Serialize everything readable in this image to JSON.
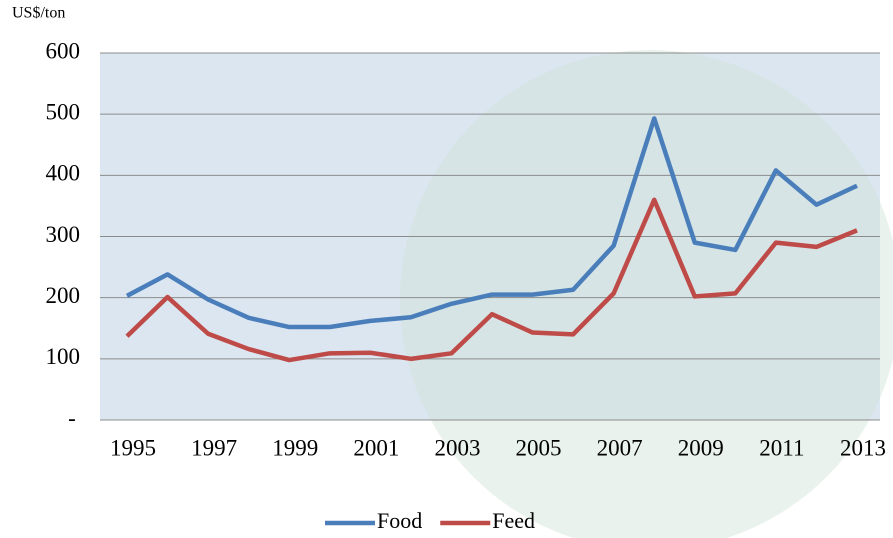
{
  "chart_data": {
    "type": "line",
    "y_unit_label": "US$/ton",
    "categories": [
      "1995",
      null,
      "1997",
      null,
      "1999",
      null,
      "2001",
      null,
      "2003",
      null,
      "2005",
      null,
      "2007",
      null,
      "2009",
      null,
      "2011",
      null,
      "2013"
    ],
    "series": [
      {
        "name": "Food",
        "color": "#4a7ebb",
        "values": [
          203,
          238,
          197,
          167,
          152,
          152,
          162,
          168,
          190,
          205,
          205,
          213,
          285,
          493,
          290,
          278,
          408,
          352,
          383
        ]
      },
      {
        "name": "Feed",
        "color": "#be4b48",
        "values": [
          137,
          201,
          141,
          116,
          98,
          109,
          110,
          100,
          109,
          173,
          143,
          140,
          207,
          360,
          202,
          207,
          290,
          283,
          310
        ]
      }
    ],
    "ylim": [
      0,
      600
    ],
    "yticks": [
      {
        "value": 0,
        "label": "-"
      },
      100,
      200,
      300,
      400,
      500,
      600
    ],
    "grid": true,
    "legend": "bottom"
  }
}
